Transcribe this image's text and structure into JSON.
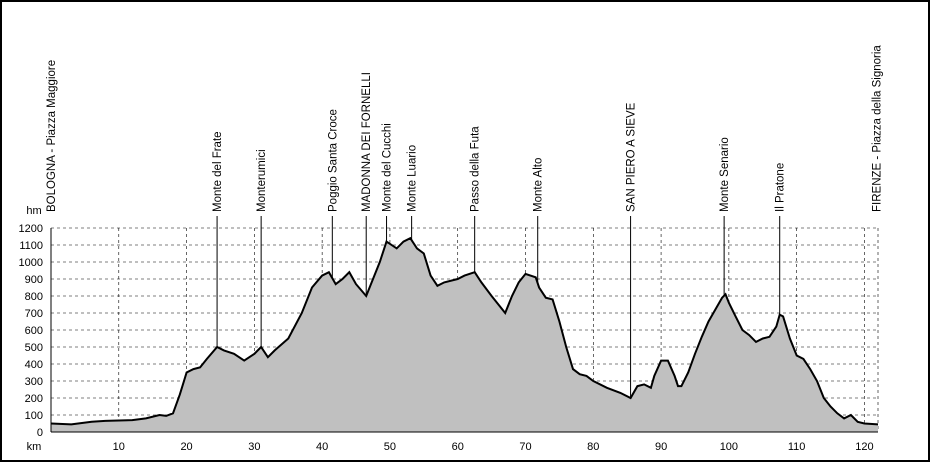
{
  "chart_data": {
    "type": "area",
    "x_label": "km",
    "y_label": "hm",
    "x": [
      0,
      3,
      6,
      8,
      12,
      14,
      16,
      17,
      18,
      19,
      20,
      21,
      22,
      23,
      24.5,
      25.5,
      27,
      28.5,
      30,
      31,
      32,
      33,
      35,
      37,
      38.5,
      40,
      41,
      42,
      43,
      44,
      45,
      46.5,
      47.5,
      48.5,
      49.5,
      51,
      52,
      53,
      54,
      55,
      56,
      57,
      58,
      60,
      61,
      62.5,
      63.5,
      65,
      66,
      67,
      68,
      69,
      70,
      71.5,
      72,
      73,
      74,
      75,
      76,
      77,
      78,
      79,
      80,
      82,
      84,
      85.5,
      86.5,
      87.5,
      88.5,
      89,
      90,
      91,
      92,
      92.5,
      93,
      94,
      95,
      96,
      97,
      98,
      99,
      99.5,
      100,
      101,
      102,
      103,
      104,
      105,
      106,
      107,
      107.5,
      108,
      109,
      110,
      111,
      112,
      113,
      114,
      115,
      116,
      117,
      118,
      119,
      120,
      122
    ],
    "values": [
      50,
      45,
      60,
      65,
      70,
      80,
      100,
      95,
      110,
      220,
      350,
      370,
      380,
      430,
      500,
      480,
      460,
      420,
      460,
      500,
      440,
      480,
      550,
      700,
      850,
      920,
      940,
      870,
      900,
      940,
      870,
      800,
      900,
      1000,
      1120,
      1080,
      1120,
      1140,
      1080,
      1050,
      920,
      860,
      880,
      900,
      920,
      940,
      880,
      800,
      750,
      700,
      800,
      880,
      930,
      910,
      850,
      790,
      780,
      650,
      500,
      370,
      340,
      330,
      300,
      260,
      230,
      200,
      270,
      280,
      260,
      330,
      420,
      420,
      330,
      270,
      270,
      350,
      460,
      560,
      650,
      720,
      790,
      810,
      760,
      680,
      600,
      570,
      530,
      550,
      560,
      620,
      690,
      680,
      550,
      450,
      430,
      370,
      300,
      200,
      150,
      110,
      80,
      100,
      60,
      50,
      45
    ],
    "color": "#000000",
    "fill": "#c0c0c0",
    "xlim": [
      0,
      122
    ],
    "ylim": [
      0,
      1200
    ],
    "xticks": [
      10,
      20,
      30,
      40,
      50,
      60,
      70,
      80,
      90,
      100,
      110,
      120
    ],
    "yticks": [
      0,
      100,
      200,
      300,
      400,
      500,
      600,
      700,
      800,
      900,
      1000,
      1100,
      1200
    ],
    "grid": true,
    "waypoints": [
      {
        "name": "BOLOGNA - Piazza Maggiore",
        "km": 0
      },
      {
        "name": "Monte del Frate",
        "km": 24.5
      },
      {
        "name": "Monterumici",
        "km": 31
      },
      {
        "name": "Poggio Santa Croce",
        "km": 41.5
      },
      {
        "name": "MADONNA DEI FORNELLI",
        "km": 46.5
      },
      {
        "name": "Monte del Cucchi",
        "km": 49.5
      },
      {
        "name": "Monte Luario",
        "km": 53.2
      },
      {
        "name": "Passo della Futa",
        "km": 62.5
      },
      {
        "name": "Monte Alto",
        "km": 71.8
      },
      {
        "name": "SAN PIERO A SIEVE",
        "km": 85.5
      },
      {
        "name": "Monte Senario",
        "km": 99.3
      },
      {
        "name": "Il Pratone",
        "km": 107.5
      },
      {
        "name": "FIRENZE - Piazza della Signoria",
        "km": 121.8
      }
    ]
  }
}
